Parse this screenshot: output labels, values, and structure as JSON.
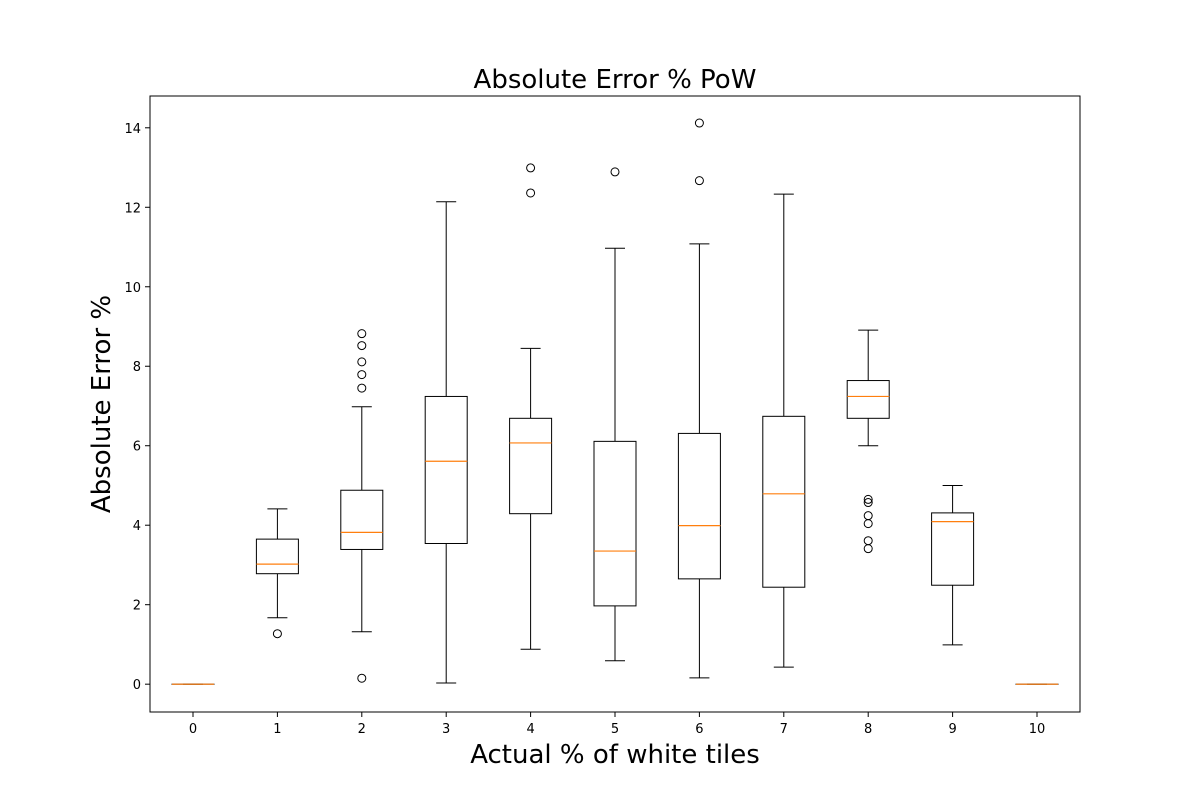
{
  "chart_data": {
    "type": "box",
    "title": "Absolute Error % PoW",
    "xlabel": "Actual % of white tiles",
    "ylabel": "Absolute Error %",
    "categories": [
      "0",
      "1",
      "2",
      "3",
      "4",
      "5",
      "6",
      "7",
      "8",
      "9",
      "10"
    ],
    "yticks": [
      "0",
      "2",
      "4",
      "6",
      "8",
      "10",
      "12",
      "14"
    ],
    "ylim": [
      -0.7,
      14.8
    ],
    "grid": false,
    "colors": {
      "box": "#000000",
      "median": "#ff7f0e",
      "frame": "#000000"
    },
    "boxes": [
      {
        "category": "0",
        "whisker_low": 0.0,
        "q1": 0.0,
        "median": 0.0,
        "q3": 0.0,
        "whisker_high": 0.0,
        "outliers": []
      },
      {
        "category": "1",
        "whisker_low": 1.67,
        "q1": 2.78,
        "median": 3.02,
        "q3": 3.65,
        "whisker_high": 4.41,
        "outliers": [
          1.27
        ]
      },
      {
        "category": "2",
        "whisker_low": 1.32,
        "q1": 3.39,
        "median": 3.82,
        "q3": 4.88,
        "whisker_high": 6.98,
        "outliers": [
          0.15,
          7.45,
          7.79,
          8.11,
          8.52,
          8.82
        ]
      },
      {
        "category": "3",
        "whisker_low": 0.03,
        "q1": 3.54,
        "median": 5.61,
        "q3": 7.24,
        "whisker_high": 12.14,
        "outliers": []
      },
      {
        "category": "4",
        "whisker_low": 0.88,
        "q1": 4.29,
        "median": 6.07,
        "q3": 6.69,
        "whisker_high": 8.45,
        "outliers": [
          12.36,
          12.99
        ]
      },
      {
        "category": "5",
        "whisker_low": 0.59,
        "q1": 1.97,
        "median": 3.35,
        "q3": 6.11,
        "whisker_high": 10.97,
        "outliers": [
          12.89
        ]
      },
      {
        "category": "6",
        "whisker_low": 0.16,
        "q1": 2.65,
        "median": 3.99,
        "q3": 6.31,
        "whisker_high": 11.08,
        "outliers": [
          12.67,
          14.12
        ]
      },
      {
        "category": "7",
        "whisker_low": 0.43,
        "q1": 2.44,
        "median": 4.79,
        "q3": 6.74,
        "whisker_high": 12.33,
        "outliers": []
      },
      {
        "category": "8",
        "whisker_low": 6.0,
        "q1": 6.69,
        "median": 7.24,
        "q3": 7.64,
        "whisker_high": 8.91,
        "outliers": [
          3.41,
          3.61,
          4.04,
          4.24,
          4.57,
          4.65
        ]
      },
      {
        "category": "9",
        "whisker_low": 0.99,
        "q1": 2.49,
        "median": 4.09,
        "q3": 4.31,
        "whisker_high": 5.0,
        "outliers": []
      },
      {
        "category": "10",
        "whisker_low": 0.0,
        "q1": 0.0,
        "median": 0.0,
        "q3": 0.0,
        "whisker_high": 0.0,
        "outliers": []
      }
    ]
  }
}
